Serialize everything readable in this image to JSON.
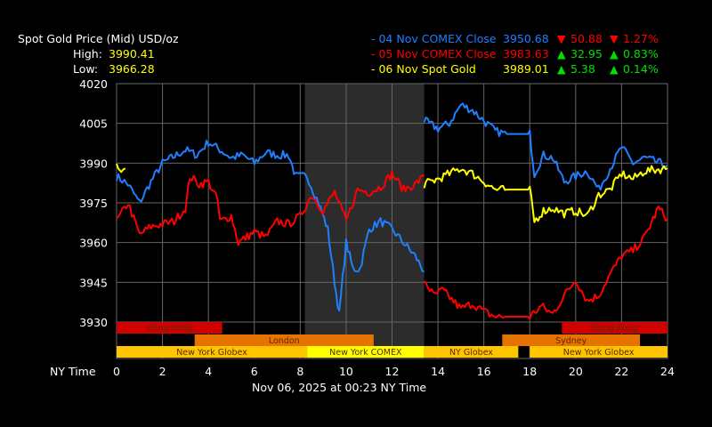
{
  "header": {
    "title": "Spot Gold Price (Mid) USD/oz",
    "high_label": "High:",
    "high": "3990.41",
    "low_label": "Low:",
    "low": "3966.28"
  },
  "legend": [
    {
      "name": "- 04 Nov COMEX Close",
      "price": "3950.68",
      "chg": "50.88",
      "pct": "1.27%",
      "dir": "down",
      "color": "#1e7fff"
    },
    {
      "name": "- 05 Nov COMEX Close",
      "price": "3983.63",
      "chg": "32.95",
      "pct": "0.83%",
      "dir": "up",
      "color": "#ff0000"
    },
    {
      "name": "- 06 Nov Spot Gold",
      "price": "3989.01",
      "chg": "5.38",
      "pct": "0.14%",
      "dir": "up",
      "color": "#ffff00"
    }
  ],
  "colors": {
    "up": "#00e000",
    "down": "#ff0000",
    "grid": "#666666",
    "comex_shade": "#2c2c2c"
  },
  "footer": {
    "xaxis_label": "NY Time",
    "timestamp": "Nov 06, 2025 at 00:23 NY Time"
  },
  "chart_data": {
    "type": "line",
    "xlim": [
      0,
      24
    ],
    "ylim": [
      3925,
      4020
    ],
    "xticks": [
      0,
      2,
      4,
      6,
      8,
      10,
      12,
      14,
      16,
      18,
      20,
      22,
      24
    ],
    "yticks": [
      3930,
      3945,
      3960,
      3975,
      3990,
      4005,
      4020
    ],
    "grid": true,
    "shaded_range": [
      8.2,
      13.4
    ],
    "sessions": [
      {
        "row": 0,
        "label": "Hong Kong",
        "start": 0,
        "end": 4.6,
        "color": "#d00000"
      },
      {
        "row": 0,
        "label": "Hong Kong",
        "start": 19.4,
        "end": 24,
        "color": "#d00000"
      },
      {
        "row": 1,
        "label": "London",
        "start": 3.4,
        "end": 11.2,
        "color": "#e67300"
      },
      {
        "row": 1,
        "label": "Sydney",
        "start": 16.8,
        "end": 22.8,
        "color": "#e67300"
      },
      {
        "row": 2,
        "label": "New York Globex",
        "start": 0,
        "end": 8.3,
        "color": "#ffc400"
      },
      {
        "row": 2,
        "label": "New York COMEX",
        "start": 8.3,
        "end": 13.4,
        "color": "#ffff00"
      },
      {
        "row": 2,
        "label": "NY Globex",
        "start": 13.4,
        "end": 17.5,
        "color": "#ffc400"
      },
      {
        "row": 2,
        "label": "New York Globex",
        "start": 18,
        "end": 24,
        "color": "#ffc400"
      }
    ],
    "series": [
      {
        "name": "04 Nov COMEX Close",
        "color": "#1e7fff",
        "segments": [
          [
            [
              0,
              3985
            ],
            [
              0.5,
              3982
            ],
            [
              1,
              3975
            ],
            [
              1.5,
              3983
            ],
            [
              2,
              3990
            ],
            [
              3,
              3995
            ],
            [
              3.5,
              3993
            ],
            [
              4,
              3998
            ],
            [
              4.5,
              3995
            ],
            [
              5,
              3992
            ],
            [
              5.5,
              3993
            ],
            [
              6,
              3990
            ],
            [
              6.5,
              3994
            ],
            [
              7,
              3993
            ],
            [
              7.5,
              3993
            ],
            [
              7.8,
              3985
            ],
            [
              8.3,
              3985
            ],
            [
              8.8,
              3975
            ],
            [
              9.2,
              3965
            ],
            [
              9.5,
              3945
            ],
            [
              9.7,
              3933
            ],
            [
              10,
              3960
            ],
            [
              10.3,
              3950
            ],
            [
              10.6,
              3950
            ],
            [
              11,
              3965
            ],
            [
              11.5,
              3968
            ],
            [
              12,
              3965
            ],
            [
              12.5,
              3960
            ],
            [
              13,
              3955
            ],
            [
              13.4,
              3949
            ]
          ],
          [
            [
              13.4,
              4006
            ],
            [
              14,
              4003
            ],
            [
              14.5,
              4005
            ],
            [
              15,
              4012
            ],
            [
              15.5,
              4010
            ],
            [
              16,
              4006
            ],
            [
              16.5,
              4002
            ],
            [
              17,
              4001
            ],
            [
              18,
              4001
            ],
            [
              18.2,
              3986
            ],
            [
              18.6,
              3993
            ],
            [
              19,
              3992
            ],
            [
              19.5,
              3983
            ],
            [
              20,
              3985
            ],
            [
              20.5,
              3987
            ],
            [
              21,
              3980
            ],
            [
              21.5,
              3988
            ],
            [
              22,
              3996
            ],
            [
              22.5,
              3990
            ],
            [
              23,
              3992
            ],
            [
              24,
              3989
            ]
          ]
        ]
      },
      {
        "name": "05 Nov COMEX Close",
        "color": "#ff0000",
        "segments": [
          [
            [
              0,
              3968
            ],
            [
              0.5,
              3975
            ],
            [
              1,
              3963
            ],
            [
              1.5,
              3966
            ],
            [
              2,
              3967
            ],
            [
              2.5,
              3968
            ],
            [
              3,
              3973
            ],
            [
              3.2,
              3985
            ],
            [
              3.6,
              3982
            ],
            [
              4,
              3983
            ],
            [
              4.4,
              3976
            ],
            [
              4.5,
              3968
            ],
            [
              5,
              3970
            ],
            [
              5.3,
              3960
            ],
            [
              6,
              3964
            ],
            [
              6.5,
              3962
            ],
            [
              7,
              3968
            ],
            [
              7.5,
              3967
            ],
            [
              8,
              3970
            ],
            [
              8.5,
              3978
            ],
            [
              9,
              3972
            ],
            [
              9.5,
              3979
            ],
            [
              10,
              3968
            ],
            [
              10.5,
              3980
            ],
            [
              11,
              3979
            ],
            [
              11.5,
              3981
            ],
            [
              12,
              3986
            ],
            [
              12.5,
              3980
            ],
            [
              13,
              3982
            ],
            [
              13.4,
              3985
            ]
          ],
          [
            [
              13.4,
              3946
            ],
            [
              13.8,
              3940
            ],
            [
              14.2,
              3942
            ],
            [
              15,
              3935
            ],
            [
              15.5,
              3937
            ],
            [
              16,
              3934
            ],
            [
              16.5,
              3932
            ],
            [
              17,
              3932
            ],
            [
              18,
              3932
            ],
            [
              18.5,
              3936
            ],
            [
              19,
              3933
            ],
            [
              19.5,
              3940
            ],
            [
              20,
              3946
            ],
            [
              20.5,
              3938
            ],
            [
              21,
              3940
            ],
            [
              21.5,
              3948
            ],
            [
              22,
              3955
            ],
            [
              22.5,
              3957
            ],
            [
              23,
              3962
            ],
            [
              23.6,
              3973
            ],
            [
              24,
              3969
            ]
          ]
        ]
      },
      {
        "name": "06 Nov Spot Gold",
        "color": "#ffff00",
        "segments": [
          [
            [
              0,
              3989
            ],
            [
              0.2,
              3986
            ],
            [
              0.38,
              3988
            ]
          ],
          [
            [
              13.4,
              3982
            ],
            [
              14,
              3984
            ],
            [
              14.5,
              3986
            ],
            [
              15,
              3988
            ],
            [
              15.5,
              3986
            ],
            [
              16,
              3983
            ],
            [
              16.5,
              3980
            ],
            [
              17,
              3980
            ],
            [
              18,
              3980
            ],
            [
              18.2,
              3968
            ],
            [
              18.6,
              3972
            ],
            [
              19,
              3973
            ],
            [
              19.5,
              3971
            ],
            [
              20,
              3972
            ],
            [
              20.5,
              3970
            ],
            [
              21,
              3978
            ],
            [
              21.5,
              3980
            ],
            [
              22,
              3986
            ],
            [
              22.5,
              3984
            ],
            [
              23,
              3987
            ],
            [
              24,
              3988
            ]
          ]
        ]
      }
    ]
  }
}
